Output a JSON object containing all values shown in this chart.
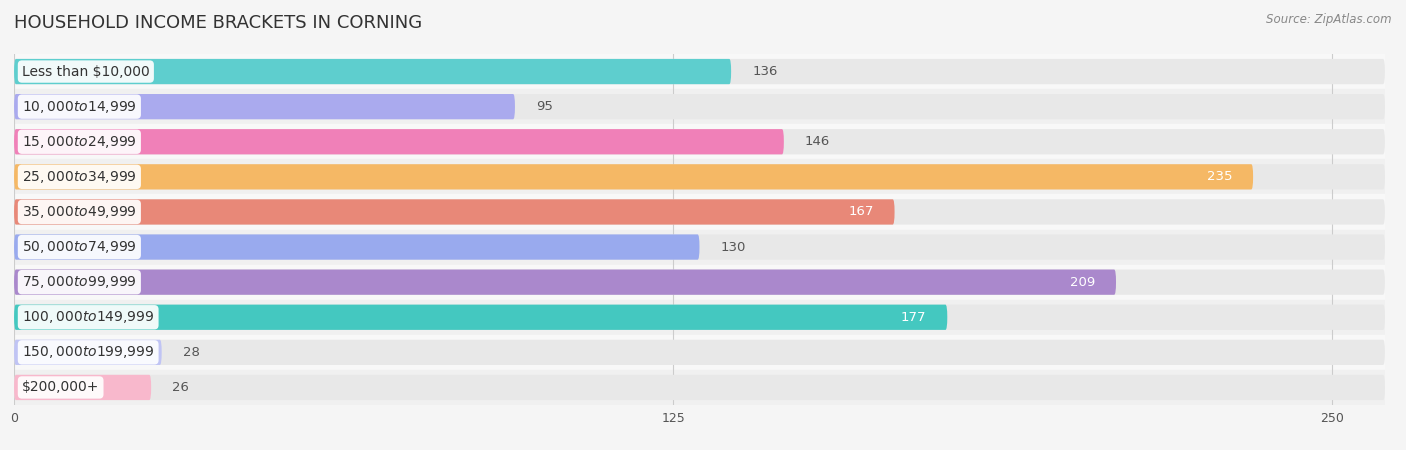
{
  "title": "HOUSEHOLD INCOME BRACKETS IN CORNING",
  "source": "Source: ZipAtlas.com",
  "categories": [
    "Less than $10,000",
    "$10,000 to $14,999",
    "$15,000 to $24,999",
    "$25,000 to $34,999",
    "$35,000 to $49,999",
    "$50,000 to $74,999",
    "$75,000 to $99,999",
    "$100,000 to $149,999",
    "$150,000 to $199,999",
    "$200,000+"
  ],
  "values": [
    136,
    95,
    146,
    235,
    167,
    130,
    209,
    177,
    28,
    26
  ],
  "bar_colors": [
    "#5ecece",
    "#aaaaee",
    "#f080b8",
    "#f5b865",
    "#e88878",
    "#99aaee",
    "#aa88cc",
    "#44c8c0",
    "#c0c4f4",
    "#f8b8cc"
  ],
  "row_colors": [
    "#f8f8f8",
    "#f0f0f0"
  ],
  "xlim": [
    0,
    260
  ],
  "xticks": [
    0,
    125,
    250
  ],
  "bar_height": 0.72,
  "label_fontsize": 10,
  "value_fontsize": 9.5,
  "title_fontsize": 13,
  "bg_color": "#f5f5f5",
  "value_inside_threshold": 160,
  "value_inside_color": "#ffffff",
  "value_outside_color": "#555555"
}
